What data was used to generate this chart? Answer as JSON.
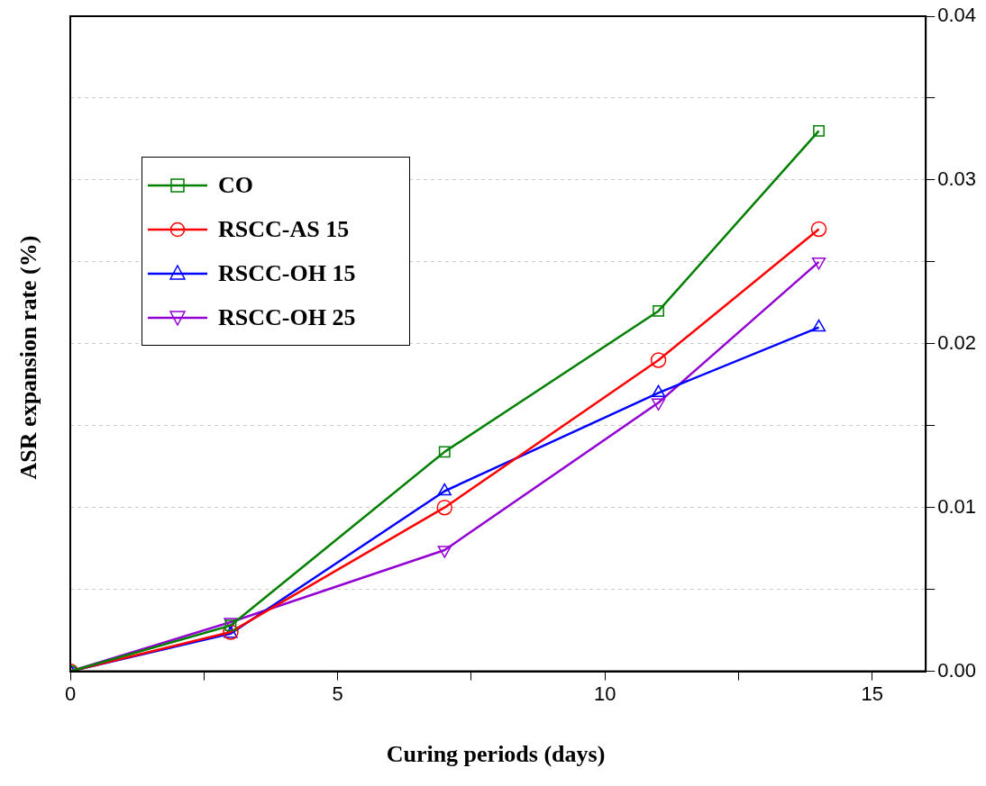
{
  "chart_data": {
    "type": "line",
    "xlabel": "Curing periods (days)",
    "ylabel": "ASR expansion rate (%)",
    "xlim": [
      0,
      16
    ],
    "xticks": [
      0,
      {
        "value": 2.5,
        "label": null
      },
      5,
      {
        "value": 7.5,
        "label": null
      },
      10,
      {
        "value": 12.5,
        "label": null
      },
      15
    ],
    "ylim": [
      0,
      0.04
    ],
    "yticks": [
      {
        "value": 0,
        "label": "0.00"
      },
      {
        "value": 0.005,
        "label": null
      },
      0.01,
      {
        "value": 0.015,
        "label": null
      },
      0.02,
      {
        "value": 0.025,
        "label": null
      },
      0.03,
      {
        "value": 0.035,
        "label": null
      },
      0.04
    ],
    "grid": "y",
    "legend": "top left",
    "line_style": "solid",
    "series": [
      {
        "name": "CO",
        "color": "#008000",
        "marker": "square",
        "x": [
          0,
          3,
          7,
          11,
          14
        ],
        "values": [
          0,
          0.0028,
          0.0134,
          0.022,
          0.033
        ]
      },
      {
        "name": "RSCC-AS 15",
        "color": "#ff0000",
        "marker": "circle",
        "x": [
          0,
          3,
          7,
          11,
          14
        ],
        "values": [
          0,
          0.0024,
          0.01,
          0.019,
          0.027
        ]
      },
      {
        "name": "RSCC-OH 15",
        "color": "#0000ff",
        "marker": "triangle",
        "x": [
          0,
          3,
          7,
          11,
          14
        ],
        "values": [
          0,
          0.0023,
          0.011,
          0.017,
          0.021
        ]
      },
      {
        "name": "RSCC-OH 25",
        "color": "#9400d3",
        "marker": "triangle_down",
        "x": [
          0,
          3,
          7,
          11,
          14
        ],
        "values": [
          0,
          0.003,
          0.0074,
          0.0164,
          0.025
        ]
      }
    ]
  }
}
